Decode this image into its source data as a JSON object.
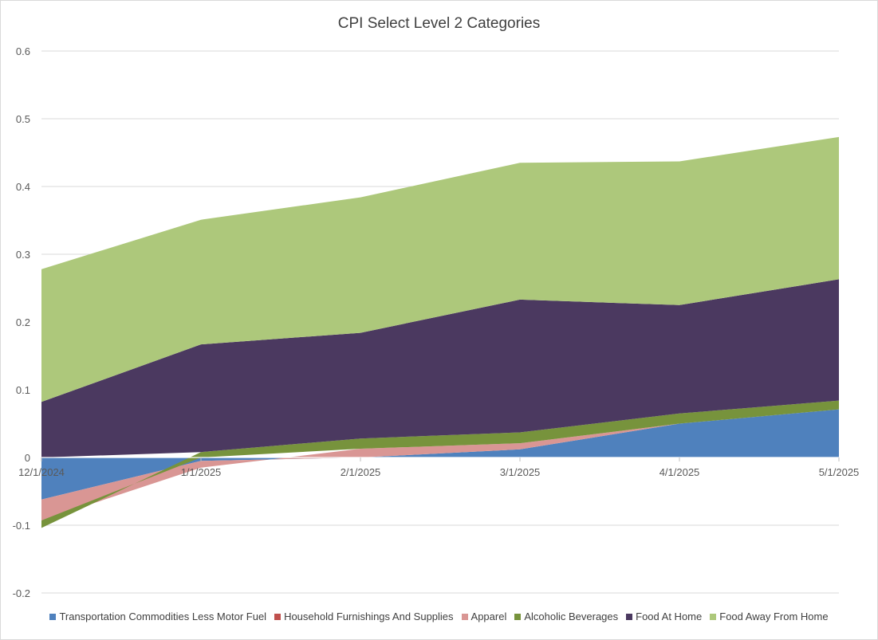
{
  "chart_data": {
    "type": "area",
    "stacked": true,
    "title": "CPI Select Level 2 Categories",
    "xlabel": "",
    "ylabel": "",
    "categories": [
      "12/1/2024",
      "1/1/2025",
      "2/1/2025",
      "3/1/2025",
      "4/1/2025",
      "5/1/2025"
    ],
    "ylim": [
      -0.2,
      0.6
    ],
    "yticks": [
      -0.2,
      -0.1,
      0,
      0.1,
      0.2,
      0.3,
      0.4,
      0.5,
      0.6
    ],
    "ytick_labels": [
      "-0.2",
      "-0.1",
      "0",
      "0.1",
      "0.2",
      "0.3",
      "0.4",
      "0.5",
      "0.6"
    ],
    "grid": true,
    "legend_position": "bottom",
    "series": [
      {
        "name": "Transportation Commodities Less Motor Fuel",
        "color": "#4f81bd",
        "values": [
          -0.062,
          -0.005,
          0.0,
          0.012,
          0.05,
          0.071
        ]
      },
      {
        "name": "Household Furnishings And Supplies",
        "color": "#c0504d",
        "values": [
          0.0,
          0.0,
          0.0,
          0.0,
          0.0,
          0.0
        ]
      },
      {
        "name": "Apparel",
        "color": "#d99694",
        "values": [
          -0.031,
          -0.01,
          0.013,
          0.009,
          0.0,
          0.0
        ]
      },
      {
        "name": "Alcoholic Beverages",
        "color": "#77933c",
        "values": [
          -0.011,
          0.008,
          0.015,
          0.016,
          0.015,
          0.013
        ]
      },
      {
        "name": "Food At Home",
        "color": "#4b3960",
        "values": [
          0.082,
          0.159,
          0.156,
          0.196,
          0.16,
          0.179
        ]
      },
      {
        "name": "Food Away From Home",
        "color": "#adc87b",
        "values": [
          0.196,
          0.184,
          0.2,
          0.202,
          0.212,
          0.21
        ]
      }
    ]
  }
}
